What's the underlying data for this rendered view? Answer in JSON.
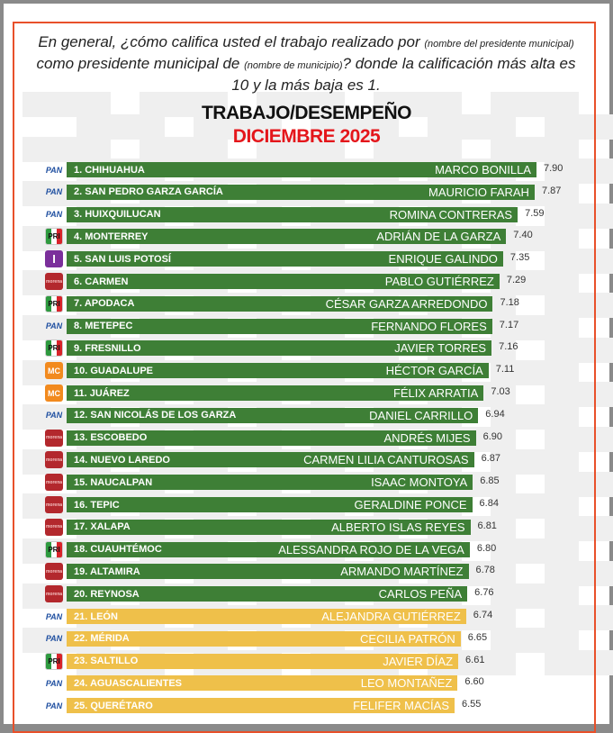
{
  "question": {
    "part1": "En general, ¿cómo califica usted el trabajo realizado por",
    "small1": "(nombre del presidente municipal)",
    "part2": "como presidente municipal de",
    "small2": "(nombre de municipio)",
    "part3": "? donde la calificación más alta es 10 y la más baja es 1."
  },
  "chart_data": {
    "type": "bar",
    "orientation": "horizontal",
    "title": "TRABAJO/DESEMPEÑO",
    "subtitle": "DICIEMBRE 2025",
    "colors": {
      "green": "#3e7f36",
      "yellow": "#efc04a",
      "title_red": "#e4161b",
      "frame": "#e8502a"
    },
    "party_labels": {
      "PAN": "PAN",
      "PRI": "PRI",
      "MORENA": "morena",
      "MC": "MC",
      "IND": "I"
    },
    "rows": [
      {
        "rank": "1. CHIHUAHUA",
        "name": "MARCO BONILLA",
        "value": 7.9,
        "party": "PAN",
        "color": "green"
      },
      {
        "rank": "2. SAN PEDRO GARZA GARCÍA",
        "name": "MAURICIO FARAH",
        "value": 7.87,
        "party": "PAN",
        "color": "green"
      },
      {
        "rank": "3. HUIXQUILUCAN",
        "name": "ROMINA CONTRERAS",
        "value": 7.59,
        "party": "PAN",
        "color": "green"
      },
      {
        "rank": "4. MONTERREY",
        "name": "ADRIÁN DE LA GARZA",
        "value": 7.4,
        "party": "PRI",
        "color": "green"
      },
      {
        "rank": "5. SAN LUIS POTOSÍ",
        "name": "ENRIQUE GALINDO",
        "value": 7.35,
        "party": "IND",
        "color": "green"
      },
      {
        "rank": "6. CARMEN",
        "name": "PABLO GUTIÉRREZ",
        "value": 7.29,
        "party": "MORENA",
        "color": "green"
      },
      {
        "rank": "7. APODACA",
        "name": "CÉSAR GARZA ARREDONDO",
        "value": 7.18,
        "party": "PRI",
        "color": "green"
      },
      {
        "rank": "8. METEPEC",
        "name": "FERNANDO FLORES",
        "value": 7.17,
        "party": "PAN",
        "color": "green"
      },
      {
        "rank": "9. FRESNILLO",
        "name": "JAVIER TORRES",
        "value": 7.16,
        "party": "PRI",
        "color": "green"
      },
      {
        "rank": "10. GUADALUPE",
        "name": "HÉCTOR GARCÍA",
        "value": 7.11,
        "party": "MC",
        "color": "green"
      },
      {
        "rank": "11. JUÁREZ",
        "name": "FÉLIX ARRATIA",
        "value": 7.03,
        "party": "MC",
        "color": "green"
      },
      {
        "rank": "12. SAN NICOLÁS DE LOS GARZA",
        "name": "DANIEL CARRILLO",
        "value": 6.94,
        "party": "PAN",
        "color": "green"
      },
      {
        "rank": "13. ESCOBEDO",
        "name": "ANDRÉS MIJES",
        "value": 6.9,
        "party": "MORENA",
        "color": "green"
      },
      {
        "rank": "14. NUEVO LAREDO",
        "name": "CARMEN LILIA CANTUROSAS",
        "value": 6.87,
        "party": "MORENA",
        "color": "green"
      },
      {
        "rank": "15. NAUCALPAN",
        "name": "ISAAC MONTOYA",
        "value": 6.85,
        "party": "MORENA",
        "color": "green"
      },
      {
        "rank": "16. TEPIC",
        "name": "GERALDINE PONCE",
        "value": 6.84,
        "party": "MORENA",
        "color": "green"
      },
      {
        "rank": "17. XALAPA",
        "name": "ALBERTO ISLAS REYES",
        "value": 6.81,
        "party": "MORENA",
        "color": "green"
      },
      {
        "rank": "18. CUAUHTÉMOC",
        "name": "ALESSANDRA ROJO DE LA VEGA",
        "value": 6.8,
        "party": "PRI",
        "color": "green"
      },
      {
        "rank": "19. ALTAMIRA",
        "name": "ARMANDO MARTÍNEZ",
        "value": 6.78,
        "party": "MORENA",
        "color": "green"
      },
      {
        "rank": "20. REYNOSA",
        "name": "CARLOS PEÑA",
        "value": 6.76,
        "party": "MORENA",
        "color": "green"
      },
      {
        "rank": "21. LEÓN",
        "name": "ALEJANDRA GUTIÉRREZ",
        "value": 6.74,
        "party": "PAN",
        "color": "yellow"
      },
      {
        "rank": "22. MÉRIDA",
        "name": "CECILIA PATRÓN",
        "value": 6.65,
        "party": "PAN",
        "color": "yellow"
      },
      {
        "rank": "23. SALTILLO",
        "name": "JAVIER DÍAZ",
        "value": 6.61,
        "party": "PRI",
        "color": "yellow"
      },
      {
        "rank": "24. AGUASCALIENTES",
        "name": "LEO MONTAÑEZ",
        "value": 6.6,
        "party": "PAN",
        "color": "yellow"
      },
      {
        "rank": "25. QUERÉTARO",
        "name": "FELIFER MACÍAS",
        "value": 6.55,
        "party": "PAN",
        "color": "yellow"
      }
    ]
  }
}
